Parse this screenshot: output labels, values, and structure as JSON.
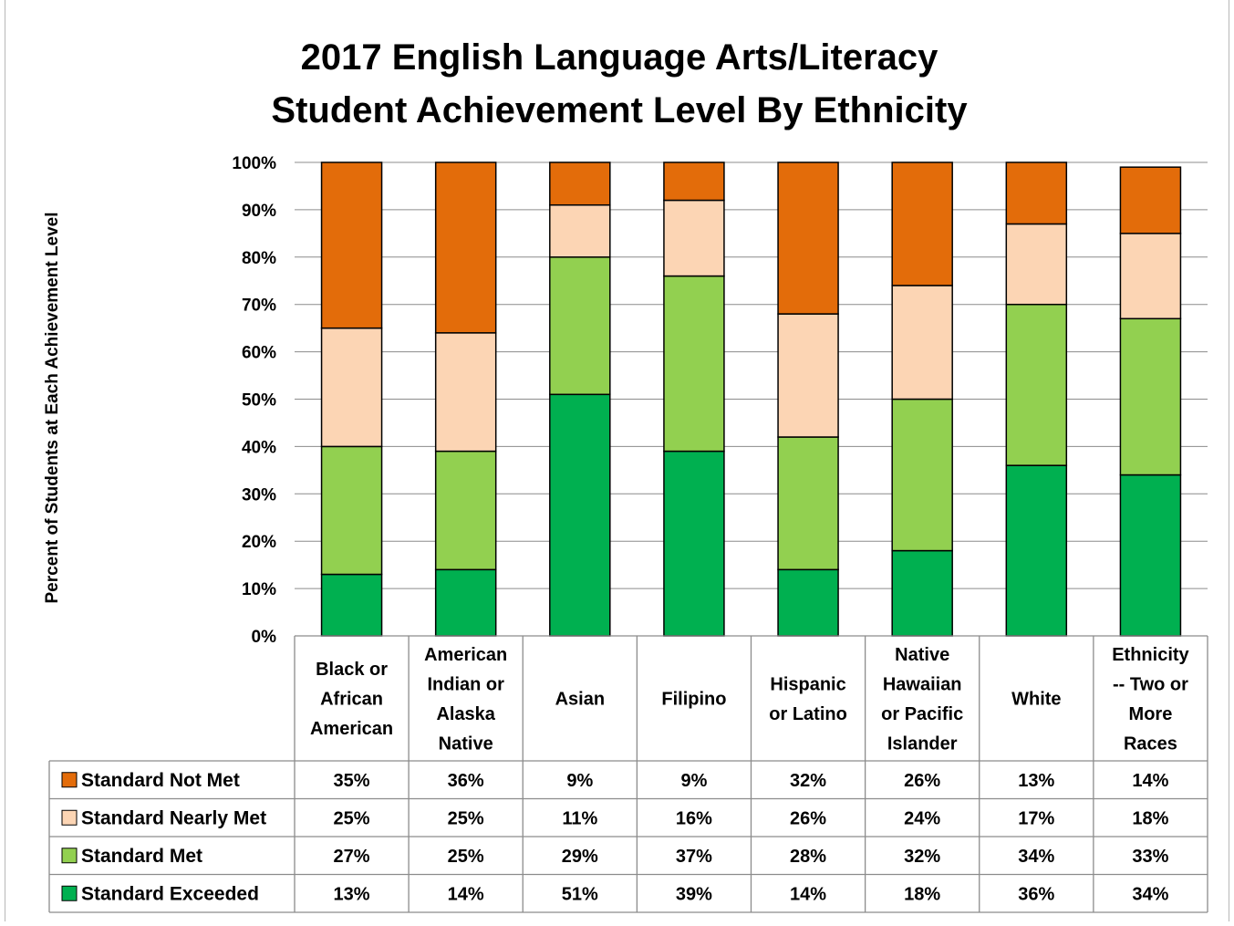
{
  "chart_data": {
    "type": "bar",
    "stacked": true,
    "title": [
      "2017 English Language Arts/Literacy",
      "Student Achievement Level By Ethnicity"
    ],
    "ylabel": "Percent of Students at Each Achievement Level",
    "ylim": [
      0,
      100
    ],
    "yticks": [
      "0%",
      "10%",
      "20%",
      "30%",
      "40%",
      "50%",
      "60%",
      "70%",
      "80%",
      "90%",
      "100%"
    ],
    "grid": true,
    "categories": [
      [
        "Black or",
        "African",
        "American"
      ],
      [
        "American",
        "Indian or",
        "Alaska",
        "Native"
      ],
      [
        "Asian"
      ],
      [
        "Filipino"
      ],
      [
        "Hispanic",
        "or Latino"
      ],
      [
        "Native",
        "Hawaiian",
        "or Pacific",
        "Islander"
      ],
      [
        "White"
      ],
      [
        "Ethnicity",
        "-- Two or",
        "More",
        "Races"
      ]
    ],
    "series": [
      {
        "name": "Standard Not Met",
        "color": "#e36c0a",
        "values": [
          35,
          36,
          9,
          9,
          32,
          26,
          13,
          14
        ],
        "labels": [
          "35%",
          "36%",
          "9%",
          "9%",
          "32%",
          "26%",
          "13%",
          "14%"
        ]
      },
      {
        "name": "Standard Nearly Met",
        "color": "#fcd5b4",
        "values": [
          25,
          25,
          11,
          16,
          26,
          24,
          17,
          18
        ],
        "labels": [
          "25%",
          "25%",
          "11%",
          "16%",
          "26%",
          "24%",
          "17%",
          "18%"
        ]
      },
      {
        "name": "Standard Met",
        "color": "#92d050",
        "values": [
          27,
          25,
          29,
          37,
          28,
          32,
          34,
          33
        ],
        "labels": [
          "27%",
          "25%",
          "29%",
          "37%",
          "28%",
          "32%",
          "34%",
          "33%"
        ]
      },
      {
        "name": "Standard Exceeded",
        "color": "#00b050",
        "values": [
          13,
          14,
          51,
          39,
          14,
          18,
          36,
          34
        ],
        "labels": [
          "13%",
          "14%",
          "51%",
          "39%",
          "14%",
          "18%",
          "36%",
          "34%"
        ]
      }
    ],
    "stack_order_bottom_to_top": [
      "Standard Exceeded",
      "Standard Met",
      "Standard Nearly Met",
      "Standard Not Met"
    ],
    "legend": "data-table-left"
  }
}
